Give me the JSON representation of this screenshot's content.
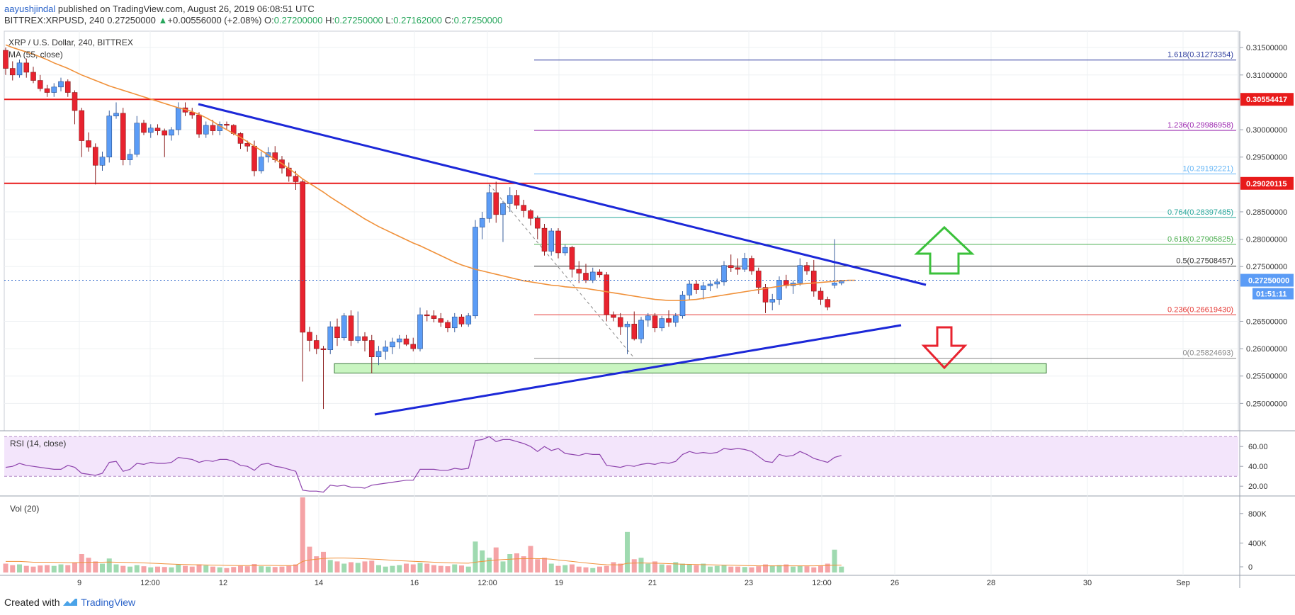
{
  "header": {
    "author": "aayushjindal",
    "published": "published on TradingView.com, August 26, 2019 06:08:51 UTC",
    "symbol": "BITTREX:XRPUSD, 240",
    "price": "0.27250000",
    "change": "+0.00556000 (+2.08%)",
    "open_label": "O:",
    "open": "0.27200000",
    "high_label": "H:",
    "high": "0.27250000",
    "low_label": "L:",
    "low": "0.27162000",
    "close_label": "C:",
    "close": "0.27250000"
  },
  "legend": {
    "title": "XRP / U.S. Dollar, 240, BITTREX",
    "ma": "MA (55, close)"
  },
  "colors": {
    "up": "#5b9cf6",
    "down": "#e8232f",
    "ma": "#f0913a",
    "trend": "#1c28d8",
    "support": "#e81b1b",
    "green_zone": "#c9f5c1",
    "rsi_line": "#8e44ad",
    "rsi_band": "#f3e5fb"
  },
  "chart_data": {
    "type": "candlestick",
    "ylim": [
      0.245,
      0.318
    ],
    "price_ticks": [
      "0.31500000",
      "0.31000000",
      "0.30000000",
      "0.29500000",
      "0.28500000",
      "0.28000000",
      "0.27500000",
      "0.26500000",
      "0.26000000",
      "0.25500000",
      "0.25000000"
    ],
    "x_ticks": [
      "9",
      "12:00",
      "12",
      "14",
      "16",
      "12:00",
      "19",
      "21",
      "23",
      "12:00",
      "26",
      "28",
      "30",
      "Sep"
    ],
    "candles": [
      [
        0.3145,
        0.315,
        0.31,
        0.3112
      ],
      [
        0.3112,
        0.3125,
        0.309,
        0.31
      ],
      [
        0.31,
        0.3128,
        0.3095,
        0.3122
      ],
      [
        0.3122,
        0.313,
        0.3095,
        0.3105
      ],
      [
        0.3105,
        0.3115,
        0.3085,
        0.309
      ],
      [
        0.309,
        0.31,
        0.307,
        0.3075
      ],
      [
        0.3075,
        0.3082,
        0.306,
        0.3068
      ],
      [
        0.3068,
        0.3085,
        0.306,
        0.3078
      ],
      [
        0.3078,
        0.3095,
        0.307,
        0.3088
      ],
      [
        0.3088,
        0.3092,
        0.306,
        0.3068
      ],
      [
        0.3068,
        0.3072,
        0.301,
        0.3035
      ],
      [
        0.3035,
        0.304,
        0.295,
        0.298
      ],
      [
        0.298,
        0.2995,
        0.296,
        0.2968
      ],
      [
        0.2968,
        0.2975,
        0.29,
        0.2935
      ],
      [
        0.2935,
        0.296,
        0.2925,
        0.295
      ],
      [
        0.295,
        0.3035,
        0.294,
        0.3025
      ],
      [
        0.3025,
        0.305,
        0.302,
        0.303
      ],
      [
        0.303,
        0.304,
        0.2935,
        0.2945
      ],
      [
        0.2945,
        0.2965,
        0.2935,
        0.2955
      ],
      [
        0.2955,
        0.3025,
        0.295,
        0.3012
      ],
      [
        0.3012,
        0.3018,
        0.299,
        0.2995
      ],
      [
        0.2995,
        0.301,
        0.2985,
        0.3003
      ],
      [
        0.3003,
        0.301,
        0.299,
        0.2998
      ],
      [
        0.2998,
        0.3002,
        0.295,
        0.299
      ],
      [
        0.299,
        0.3005,
        0.298,
        0.3
      ],
      [
        0.3,
        0.305,
        0.299,
        0.304
      ],
      [
        0.304,
        0.305,
        0.3025,
        0.3032
      ],
      [
        0.3032,
        0.304,
        0.302,
        0.3027
      ],
      [
        0.3027,
        0.3032,
        0.2985,
        0.2992
      ],
      [
        0.2992,
        0.3015,
        0.2985,
        0.3008
      ],
      [
        0.3008,
        0.3018,
        0.299,
        0.2998
      ],
      [
        0.2998,
        0.3015,
        0.299,
        0.301
      ],
      [
        0.301,
        0.3015,
        0.3,
        0.3008
      ],
      [
        0.3008,
        0.301,
        0.299,
        0.2993
      ],
      [
        0.2993,
        0.2995,
        0.2965,
        0.2975
      ],
      [
        0.2975,
        0.298,
        0.296,
        0.297
      ],
      [
        0.297,
        0.298,
        0.2915,
        0.2925
      ],
      [
        0.2925,
        0.296,
        0.292,
        0.295
      ],
      [
        0.295,
        0.2968,
        0.294,
        0.2958
      ],
      [
        0.2958,
        0.297,
        0.294,
        0.2945
      ],
      [
        0.2945,
        0.2952,
        0.292,
        0.293
      ],
      [
        0.293,
        0.294,
        0.2905,
        0.2915
      ],
      [
        0.2915,
        0.2925,
        0.289,
        0.2905
      ],
      [
        0.2905,
        0.291,
        0.254,
        0.263
      ],
      [
        0.263,
        0.264,
        0.2595,
        0.2615
      ],
      [
        0.2615,
        0.2625,
        0.259,
        0.26
      ],
      [
        0.26,
        0.2605,
        0.249,
        0.2598
      ],
      [
        0.2598,
        0.265,
        0.259,
        0.264
      ],
      [
        0.264,
        0.2655,
        0.2605,
        0.262
      ],
      [
        0.262,
        0.2665,
        0.2615,
        0.266
      ],
      [
        0.266,
        0.267,
        0.2605,
        0.2615
      ],
      [
        0.2615,
        0.2668,
        0.261,
        0.2622
      ],
      [
        0.2622,
        0.263,
        0.2595,
        0.2615
      ],
      [
        0.2615,
        0.2625,
        0.2555,
        0.2585
      ],
      [
        0.2585,
        0.2605,
        0.257,
        0.2595
      ],
      [
        0.2595,
        0.2615,
        0.258,
        0.2603
      ],
      [
        0.2603,
        0.262,
        0.259,
        0.2612
      ],
      [
        0.2612,
        0.2625,
        0.26,
        0.2618
      ],
      [
        0.2618,
        0.2625,
        0.2605,
        0.2608
      ],
      [
        0.2608,
        0.262,
        0.2595,
        0.26
      ],
      [
        0.26,
        0.2675,
        0.2595,
        0.2662
      ],
      [
        0.2662,
        0.267,
        0.265,
        0.266
      ],
      [
        0.266,
        0.267,
        0.2648,
        0.2655
      ],
      [
        0.2655,
        0.2665,
        0.264,
        0.2648
      ],
      [
        0.2648,
        0.2652,
        0.263,
        0.2638
      ],
      [
        0.2638,
        0.2665,
        0.263,
        0.2658
      ],
      [
        0.2658,
        0.2663,
        0.264,
        0.2645
      ],
      [
        0.2645,
        0.2665,
        0.264,
        0.266
      ],
      [
        0.266,
        0.2835,
        0.2655,
        0.2822
      ],
      [
        0.2822,
        0.285,
        0.28,
        0.2838
      ],
      [
        0.2838,
        0.29,
        0.283,
        0.2885
      ],
      [
        0.2885,
        0.2905,
        0.283,
        0.2845
      ],
      [
        0.2845,
        0.287,
        0.2795,
        0.2865
      ],
      [
        0.2865,
        0.2895,
        0.285,
        0.288
      ],
      [
        0.288,
        0.289,
        0.2855,
        0.2862
      ],
      [
        0.2862,
        0.2872,
        0.284,
        0.2852
      ],
      [
        0.2852,
        0.2855,
        0.2825,
        0.2838
      ],
      [
        0.2838,
        0.2843,
        0.28,
        0.282
      ],
      [
        0.282,
        0.2828,
        0.277,
        0.2778
      ],
      [
        0.2778,
        0.282,
        0.277,
        0.2815
      ],
      [
        0.2815,
        0.282,
        0.2765,
        0.2775
      ],
      [
        0.2775,
        0.279,
        0.277,
        0.2785
      ],
      [
        0.2785,
        0.2788,
        0.273,
        0.2745
      ],
      [
        0.2745,
        0.276,
        0.272,
        0.2738
      ],
      [
        0.2738,
        0.2755,
        0.272,
        0.2725
      ],
      [
        0.2725,
        0.2748,
        0.272,
        0.274
      ],
      [
        0.274,
        0.2745,
        0.273,
        0.2735
      ],
      [
        0.2735,
        0.274,
        0.265,
        0.2662
      ],
      [
        0.2662,
        0.2668,
        0.265,
        0.2657
      ],
      [
        0.2657,
        0.2665,
        0.2625,
        0.264
      ],
      [
        0.264,
        0.265,
        0.259,
        0.2645
      ],
      [
        0.2645,
        0.2668,
        0.2615,
        0.2618
      ],
      [
        0.2618,
        0.2658,
        0.261,
        0.2652
      ],
      [
        0.2652,
        0.2665,
        0.264,
        0.266
      ],
      [
        0.266,
        0.2665,
        0.263,
        0.2638
      ],
      [
        0.2638,
        0.266,
        0.2632,
        0.2655
      ],
      [
        0.2655,
        0.267,
        0.264,
        0.2648
      ],
      [
        0.2648,
        0.2665,
        0.264,
        0.266
      ],
      [
        0.266,
        0.2705,
        0.2655,
        0.2698
      ],
      [
        0.2698,
        0.2725,
        0.269,
        0.2718
      ],
      [
        0.2718,
        0.2725,
        0.27,
        0.2708
      ],
      [
        0.2708,
        0.2722,
        0.269,
        0.2715
      ],
      [
        0.2715,
        0.2725,
        0.2705,
        0.2718
      ],
      [
        0.2718,
        0.2728,
        0.271,
        0.2722
      ],
      [
        0.2722,
        0.276,
        0.2715,
        0.2752
      ],
      [
        0.2752,
        0.2772,
        0.274,
        0.2748
      ],
      [
        0.2748,
        0.2765,
        0.2735,
        0.2745
      ],
      [
        0.2745,
        0.2775,
        0.274,
        0.2765
      ],
      [
        0.2765,
        0.277,
        0.2735,
        0.2742
      ],
      [
        0.2742,
        0.2748,
        0.27,
        0.2712
      ],
      [
        0.2712,
        0.2718,
        0.2665,
        0.2685
      ],
      [
        0.2685,
        0.27,
        0.267,
        0.269
      ],
      [
        0.269,
        0.2732,
        0.268,
        0.2725
      ],
      [
        0.2725,
        0.2735,
        0.271,
        0.2715
      ],
      [
        0.2715,
        0.2725,
        0.27,
        0.272
      ],
      [
        0.272,
        0.2765,
        0.2715,
        0.2752
      ],
      [
        0.2752,
        0.2758,
        0.2735,
        0.2742
      ],
      [
        0.2742,
        0.2762,
        0.2695,
        0.2705
      ],
      [
        0.2705,
        0.2712,
        0.268,
        0.269
      ],
      [
        0.269,
        0.2695,
        0.267,
        0.2676
      ],
      [
        0.2716,
        0.28,
        0.271,
        0.272
      ],
      [
        0.272,
        0.2725,
        0.2716,
        0.2725
      ]
    ],
    "ma": [
      0.3155,
      0.315,
      0.3146,
      0.3142,
      0.3138,
      0.3133,
      0.3128,
      0.3122,
      0.3117,
      0.3112,
      0.3106,
      0.31,
      0.3095,
      0.309,
      0.3085,
      0.308,
      0.3076,
      0.3072,
      0.3068,
      0.3064,
      0.306,
      0.3056,
      0.3052,
      0.3048,
      0.3044,
      0.304,
      0.3037,
      0.3033,
      0.3028,
      0.3022,
      0.3015,
      0.3007,
      0.3,
      0.2993,
      0.2986,
      0.2978,
      0.297,
      0.2962,
      0.2954,
      0.2946,
      0.2938,
      0.2929,
      0.292,
      0.291,
      0.2902,
      0.2894,
      0.2886,
      0.2877,
      0.2869,
      0.2861,
      0.2853,
      0.2845,
      0.2837,
      0.283,
      0.2823,
      0.2817,
      0.2811,
      0.2805,
      0.2799,
      0.2793,
      0.2788,
      0.2782,
      0.2776,
      0.277,
      0.2764,
      0.2758,
      0.2753,
      0.2749,
      0.2745,
      0.2742,
      0.2739,
      0.2736,
      0.2733,
      0.273,
      0.2727,
      0.2724,
      0.2722,
      0.272,
      0.2718,
      0.2716,
      0.2715,
      0.2713,
      0.2712,
      0.2711,
      0.271,
      0.2708,
      0.2706,
      0.2704,
      0.2702,
      0.27,
      0.2698,
      0.2696,
      0.2694,
      0.2692,
      0.269,
      0.2689,
      0.2688,
      0.2688,
      0.2688,
      0.2689,
      0.269,
      0.2692,
      0.2694,
      0.2696,
      0.2698,
      0.27,
      0.2702,
      0.2704,
      0.2706,
      0.2708,
      0.271,
      0.2712,
      0.2714,
      0.2716,
      0.2717,
      0.2718,
      0.2719,
      0.272,
      0.2721,
      0.2722,
      0.2723,
      0.2724,
      0.2725,
      0.2725
    ],
    "fib_levels": [
      {
        "label": "1.618(0.31273354)",
        "value": 0.31273354,
        "color": "#303f9f"
      },
      {
        "label": "1.236(0.29986958)",
        "value": 0.29986958,
        "color": "#9c27b0"
      },
      {
        "label": "1(0.29192221)",
        "value": 0.29192221,
        "color": "#64b5f6"
      },
      {
        "label": "0.764(0.28397485)",
        "value": 0.28397485,
        "color": "#26a69a"
      },
      {
        "label": "0.618(0.27905825)",
        "value": 0.27905825,
        "color": "#4caf50"
      },
      {
        "label": "0.5(0.27508457)",
        "value": 0.27508457,
        "color": "#333333"
      },
      {
        "label": "0.236(0.26619430)",
        "value": 0.2661943,
        "color": "#e53935"
      },
      {
        "label": "0(0.25824693)",
        "value": 0.25824693,
        "color": "#888888"
      }
    ],
    "resistance_levels": [
      {
        "label": "0.30554417",
        "value": 0.30554417
      },
      {
        "label": "0.29020115",
        "value": 0.29020115
      }
    ],
    "support_zone": [
      0.2558,
      0.257
    ],
    "last_price_label": "0.27250000",
    "countdown_label": "01:51:11",
    "rsi": {
      "title": "RSI (14, close)",
      "ylim": [
        13,
        73
      ],
      "ticks": [
        "60.00",
        "40.00",
        "20.00"
      ],
      "bands": [
        30,
        70
      ],
      "values": [
        39,
        40,
        43,
        41,
        40,
        39,
        38,
        37,
        37,
        41,
        39,
        33,
        32,
        31,
        33,
        44,
        45,
        35,
        37,
        43,
        42,
        44,
        43,
        43,
        44,
        49,
        48,
        47,
        44,
        46,
        45,
        47,
        47,
        45,
        41,
        40,
        36,
        42,
        43,
        40,
        39,
        37,
        35,
        16,
        15,
        15,
        14,
        21,
        20,
        21,
        19,
        19,
        18,
        21,
        22,
        23,
        24,
        25,
        26,
        26,
        37,
        37,
        37,
        36,
        36,
        38,
        37,
        38,
        66,
        67,
        70,
        65,
        67,
        67,
        65,
        63,
        60,
        55,
        60,
        56,
        58,
        53,
        52,
        51,
        53,
        52,
        52,
        41,
        40,
        39,
        41,
        40,
        42,
        43,
        42,
        44,
        43,
        45,
        52,
        55,
        53,
        54,
        53,
        54,
        58,
        57,
        58,
        57,
        55,
        50,
        45,
        44,
        52,
        50,
        51,
        55,
        52,
        48,
        46,
        44,
        49,
        51
      ]
    },
    "volume": {
      "title": "Vol (20)",
      "ylim": [
        0,
        1000000
      ],
      "ticks": [
        "800K",
        "400K",
        "0"
      ],
      "values": [
        120,
        100,
        110,
        90,
        80,
        95,
        100,
        90,
        110,
        100,
        130,
        250,
        200,
        150,
        120,
        190,
        110,
        90,
        80,
        100,
        85,
        70,
        80,
        75,
        70,
        110,
        90,
        80,
        110,
        95,
        80,
        70,
        60,
        75,
        90,
        85,
        115,
        85,
        80,
        75,
        80,
        90,
        110,
        1020,
        350,
        220,
        280,
        170,
        150,
        120,
        140,
        130,
        150,
        160,
        100,
        80,
        90,
        100,
        120,
        110,
        130,
        120,
        100,
        90,
        85,
        110,
        95,
        80,
        420,
        300,
        200,
        340,
        150,
        250,
        260,
        220,
        360,
        180,
        200,
        120,
        90,
        100,
        110,
        80,
        70,
        60,
        80,
        90,
        140,
        120,
        550,
        180,
        200,
        120,
        150,
        110,
        100,
        140,
        120,
        110,
        100,
        120,
        80,
        90,
        100,
        80,
        80,
        75,
        70,
        85,
        110,
        95,
        100,
        110,
        80,
        90,
        85,
        70,
        95,
        120,
        310,
        80
      ],
      "ma": [
        150,
        150,
        150,
        145,
        140,
        140,
        140,
        138,
        136,
        134,
        134,
        136,
        138,
        140,
        140,
        142,
        140,
        138,
        136,
        134,
        130,
        126,
        122,
        118,
        114,
        110,
        108,
        106,
        104,
        102,
        100,
        98,
        96,
        95,
        94,
        94,
        95,
        96,
        96,
        95,
        94,
        94,
        95,
        150,
        170,
        180,
        190,
        195,
        196,
        196,
        194,
        190,
        186,
        182,
        178,
        172,
        166,
        160,
        156,
        152,
        148,
        144,
        140,
        136,
        132,
        130,
        128,
        126,
        140,
        150,
        160,
        170,
        175,
        180,
        185,
        188,
        190,
        188,
        186,
        180,
        170,
        160,
        150,
        140,
        130,
        120,
        112,
        106,
        104,
        103,
        125,
        128,
        130,
        128,
        126,
        124,
        120,
        116,
        112,
        110,
        108,
        106,
        104,
        102,
        100,
        98,
        96,
        94,
        92,
        90,
        90,
        90,
        90,
        90,
        90,
        90,
        90,
        90,
        92,
        95,
        100,
        100
      ]
    },
    "annotations": {
      "up_arrow": "bullish breakout",
      "down_arrow": "bearish breakdown"
    }
  },
  "footer": {
    "created_with": "Created with",
    "brand": "TradingView"
  }
}
